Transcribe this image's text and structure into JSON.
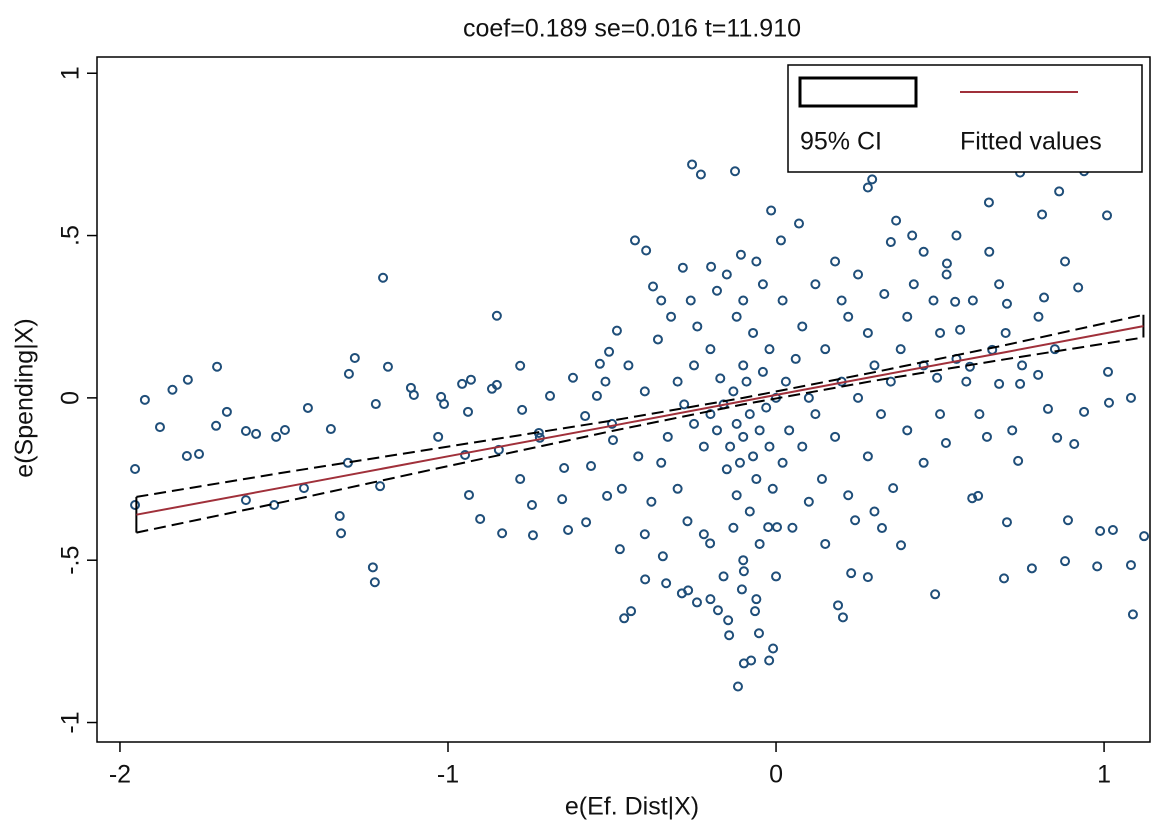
{
  "chart_data": {
    "type": "scatter",
    "title": "coef=0.189 se=0.016 t=11.910",
    "x_label": "e(Ef. Dist|X)",
    "y_label": "e(Spending|X)",
    "xlim": [
      -2.07,
      1.14
    ],
    "ylim": [
      -1.06,
      1.05
    ],
    "xticks": [
      -2,
      -1,
      0,
      1
    ],
    "yticks": [
      -1,
      {
        "value": -0.5,
        "label": "-.5"
      },
      0,
      {
        "value": 0.5,
        "label": ".5"
      },
      1
    ],
    "grid": false,
    "legend": "top-right",
    "series": [
      {
        "type": "scatter",
        "color": "#1f4e79",
        "x": [
          -1.954,
          -1.954,
          -1.924,
          -1.878,
          -1.84,
          -1.793,
          -1.796,
          -1.759,
          -1.704,
          -1.707,
          -1.674,
          -1.616,
          -1.585,
          -1.616,
          -1.53,
          -1.524,
          -1.497,
          -1.439,
          -1.427,
          -1.357,
          -1.33,
          -1.326,
          -1.302,
          -1.284,
          -1.305,
          -1.229,
          -1.223,
          -1.22,
          -1.198,
          -1.183,
          -1.207,
          -1.113,
          -1.104,
          -1.021,
          -1.012,
          -1.03,
          -0.957,
          -0.93,
          -0.939,
          -0.948,
          -0.936,
          -0.902,
          -0.866,
          -0.851,
          -0.845,
          -0.851,
          -0.835,
          -0.78,
          -0.78,
          -0.774,
          -0.744,
          -0.741,
          -0.723,
          -0.72,
          -0.689,
          -0.652,
          -0.646,
          -0.634,
          -0.619,
          -0.582,
          -0.579,
          -0.564,
          -0.546,
          -0.537,
          -0.509,
          -0.515,
          -0.497,
          -0.485,
          -0.476,
          -0.256,
          -0.229,
          -0.125,
          -0.015,
          0.07,
          -0.43,
          -0.396,
          -0.375,
          -0.284,
          -0.198,
          -0.107,
          0.015,
          -0.116,
          -0.098,
          -0.076,
          -0.021,
          -0.009,
          -0.143,
          -0.052,
          -0.177,
          -0.241,
          -0.268,
          -0.463,
          -0.442,
          -0.399,
          -0.345,
          -0.335,
          -0.287,
          -0.201,
          -0.104,
          -0.098,
          -0.146,
          -0.064,
          -0.024,
          0.003,
          0.485,
          0.189,
          0.204,
          0.229,
          0.28,
          0.695,
          0.78,
          0.881,
          0.979,
          1.082,
          1.088,
          1.122,
          1.027,
          0.988,
          0.89,
          0.704,
          0.738,
          0.829,
          0.939,
          1.015,
          1.082,
          1.012,
          1.009,
          0.863,
          0.939,
          0.744,
          0.366,
          0.293,
          0.28,
          0.415,
          0.521,
          0.811,
          0.649,
          0.921,
          0.881,
          0.704,
          0.817,
          0.546,
          0.561,
          0.909,
          0.857,
          0.643,
          0.616,
          0.518,
          0.598,
          0.381,
          0.323,
          0.241,
          0.357,
          0.744,
          0.659,
          0.799,
          0.68,
          0.591,
          0.491,
          -0.12,
          -0.1,
          -0.08,
          -0.14,
          -0.05,
          -0.16,
          -0.11,
          -0.07,
          -0.13,
          -0.09,
          -0.03,
          -0.18,
          -0.2,
          -0.06,
          -0.12,
          -0.15,
          -0.02,
          -0.1,
          -0.04,
          -0.17,
          -0.22,
          -0.25,
          -0.08,
          -0.13,
          -0.05,
          -0.1,
          -0.01,
          0.02,
          0.04,
          0.0,
          0.03,
          0.06,
          -0.02,
          -0.07,
          -0.12,
          -0.2,
          -0.25,
          -0.3,
          -0.28,
          -0.33,
          -0.35,
          -0.3,
          -0.27,
          -0.22,
          -0.38,
          -0.42,
          -0.4,
          -0.45,
          -0.36,
          -0.32,
          -0.26,
          -0.18,
          -0.1,
          -0.04,
          0.02,
          0.08,
          0.1,
          0.12,
          0.08,
          0.14,
          0.1,
          0.05,
          0.18,
          0.2,
          0.15,
          0.22,
          0.28,
          0.3,
          0.25,
          0.32,
          0.35,
          0.38,
          0.4,
          0.33,
          0.25,
          0.18,
          0.12,
          0.2,
          0.42,
          0.48,
          0.5,
          0.45,
          0.55,
          0.52,
          0.6,
          0.58,
          0.62,
          0.4,
          0.28,
          0.22,
          0.3,
          0.15,
          0.0,
          -0.16,
          -0.2,
          -0.06,
          0.45,
          0.5,
          0.7,
          0.75,
          0.68,
          0.8,
          0.85,
          0.72,
          0.65,
          0.55,
          0.45,
          0.35,
          -0.06,
          -0.15,
          -0.24,
          -0.35,
          -0.4,
          -0.47,
          -0.5,
          -0.52
        ],
        "y": [
          -0.219,
          -0.33,
          -0.006,
          -0.09,
          0.025,
          0.056,
          -0.179,
          -0.173,
          0.096,
          -0.086,
          -0.043,
          -0.102,
          -0.111,
          -0.315,
          -0.33,
          -0.12,
          -0.099,
          -0.278,
          -0.031,
          -0.096,
          -0.364,
          -0.417,
          0.074,
          0.123,
          -0.2,
          -0.522,
          -0.568,
          -0.019,
          0.37,
          0.096,
          -0.272,
          0.031,
          0.009,
          0.003,
          -0.019,
          -0.12,
          0.043,
          0.056,
          -0.043,
          -0.176,
          -0.299,
          -0.373,
          0.028,
          0.04,
          -0.16,
          0.253,
          -0.417,
          -0.25,
          0.099,
          -0.037,
          -0.33,
          -0.423,
          -0.108,
          -0.123,
          0.006,
          -0.312,
          -0.216,
          -0.407,
          0.062,
          -0.056,
          -0.383,
          -0.21,
          0.006,
          0.105,
          0.142,
          -0.302,
          -0.13,
          0.207,
          -0.466,
          0.719,
          0.688,
          0.698,
          0.577,
          0.537,
          0.485,
          0.454,
          0.343,
          0.401,
          0.404,
          0.441,
          0.485,
          -0.889,
          -0.818,
          -0.809,
          -0.809,
          -0.772,
          -0.731,
          -0.725,
          -0.654,
          -0.63,
          -0.593,
          -0.679,
          -0.657,
          -0.559,
          -0.488,
          -0.571,
          -0.602,
          -0.448,
          -0.59,
          -0.534,
          -0.685,
          -0.657,
          -0.398,
          -0.398,
          -0.605,
          -0.639,
          -0.676,
          -0.54,
          -0.552,
          -0.556,
          -0.525,
          -0.503,
          -0.519,
          -0.515,
          -0.667,
          -0.426,
          -0.407,
          -0.41,
          -0.377,
          -0.383,
          -0.194,
          -0.034,
          -0.043,
          -0.015,
          0.0,
          0.08,
          0.562,
          0.636,
          0.698,
          0.694,
          0.546,
          0.673,
          0.648,
          0.5,
          0.414,
          0.565,
          0.602,
          0.34,
          0.42,
          0.29,
          0.309,
          0.296,
          0.21,
          -0.142,
          -0.123,
          -0.12,
          -0.302,
          -0.139,
          -0.309,
          -0.454,
          -0.401,
          -0.377,
          -0.278,
          0.043,
          0.148,
          0.071,
          0.043,
          0.096,
          0.062,
          -0.08,
          -0.12,
          -0.05,
          -0.15,
          -0.1,
          -0.02,
          -0.2,
          -0.18,
          0.02,
          0.05,
          -0.03,
          -0.1,
          -0.05,
          -0.25,
          -0.3,
          -0.22,
          -0.15,
          0.1,
          0.08,
          0.06,
          -0.15,
          -0.08,
          -0.35,
          -0.4,
          -0.45,
          -0.5,
          -0.28,
          -0.2,
          -0.1,
          0.0,
          0.05,
          0.12,
          0.15,
          0.2,
          0.25,
          0.15,
          0.1,
          0.05,
          -0.02,
          -0.12,
          -0.2,
          -0.28,
          -0.38,
          -0.42,
          -0.32,
          -0.18,
          0.02,
          0.1,
          0.18,
          0.25,
          0.3,
          0.33,
          0.3,
          0.35,
          0.3,
          0.22,
          0.0,
          -0.05,
          -0.15,
          -0.25,
          -0.32,
          -0.4,
          -0.12,
          0.05,
          0.15,
          0.25,
          0.2,
          0.1,
          0.0,
          -0.05,
          0.05,
          0.15,
          0.25,
          0.32,
          0.38,
          0.42,
          0.35,
          0.3,
          0.35,
          0.3,
          0.2,
          0.1,
          0.12,
          0.38,
          0.3,
          0.05,
          -0.05,
          -0.1,
          -0.18,
          -0.3,
          -0.35,
          -0.45,
          -0.55,
          -0.55,
          -0.62,
          -0.62,
          -0.2,
          -0.05,
          0.2,
          0.1,
          0.35,
          0.25,
          0.15,
          -0.1,
          0.45,
          0.5,
          0.45,
          0.48,
          0.42,
          0.38,
          0.22,
          0.3,
          -0.42,
          -0.28,
          -0.08,
          0.05
        ]
      },
      {
        "name": "95% CI",
        "type": "ci",
        "color": "#000000",
        "x": [
          -1.95,
          -1.5,
          -1,
          -0.5,
          -0.1,
          0.3,
          0.7,
          1.12
        ],
        "upper": [
          -0.305,
          -0.23,
          -0.15,
          -0.07,
          0.0,
          0.079,
          0.163,
          0.256
        ],
        "lower": [
          -0.415,
          -0.32,
          -0.21,
          -0.102,
          -0.02,
          0.053,
          0.119,
          0.186
        ]
      },
      {
        "name": "Fitted values",
        "type": "line",
        "color": "#a0303a",
        "x": [
          -1.95,
          -1.5,
          -1,
          -0.5,
          -0.1,
          0.3,
          0.7,
          1.12
        ],
        "y": [
          -0.36,
          -0.275,
          -0.18,
          -0.086,
          -0.01,
          0.066,
          0.141,
          0.221
        ]
      }
    ]
  }
}
